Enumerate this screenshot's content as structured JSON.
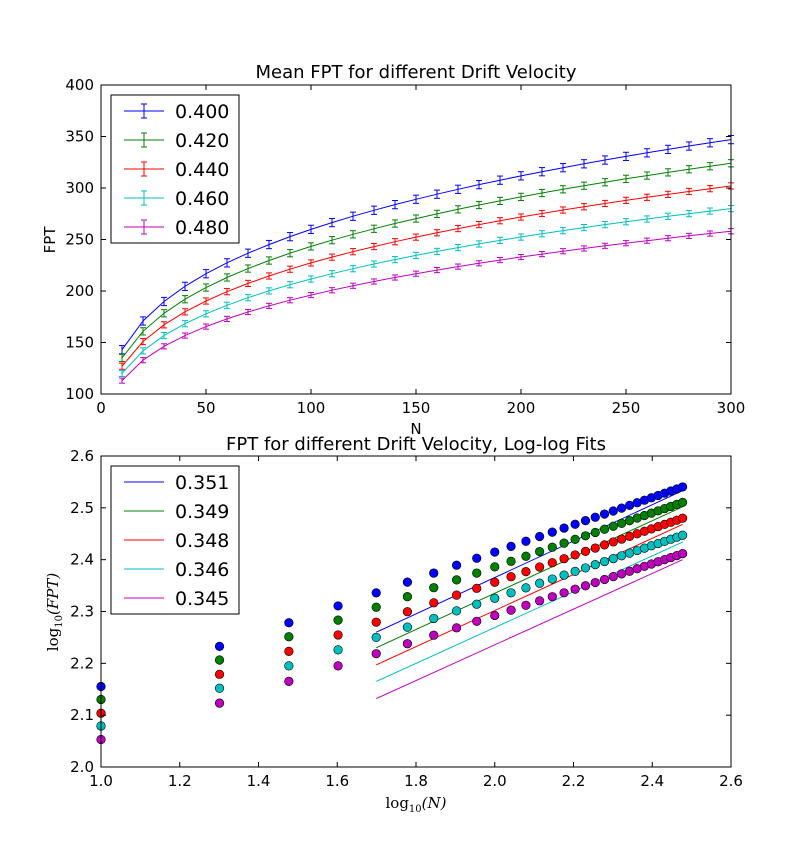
{
  "chart_data": [
    {
      "type": "line",
      "title": "Mean FPT for different Drift Velocity",
      "xlabel": "N",
      "ylabel": "FPT",
      "xlim": [
        0,
        300
      ],
      "ylim": [
        100,
        400
      ],
      "xticks": [
        "0",
        "50",
        "100",
        "150",
        "200",
        "250",
        "300"
      ],
      "yticks": [
        "100",
        "150",
        "200",
        "250",
        "300",
        "350",
        "400"
      ],
      "grid": false,
      "legend": "top-left",
      "error_bars": true,
      "x": [
        10,
        20,
        30,
        40,
        50,
        60,
        70,
        80,
        90,
        100,
        110,
        120,
        130,
        140,
        150,
        160,
        170,
        180,
        190,
        200,
        210,
        220,
        230,
        240,
        250,
        260,
        270,
        280,
        290,
        300
      ],
      "series": [
        {
          "name": "0.400",
          "color": "#0000ff",
          "y_at_10": 143,
          "y_at_300": 347,
          "exponent": 0.27,
          "error": 4
        },
        {
          "name": "0.420",
          "color": "#008000",
          "y_at_10": 135,
          "y_at_300": 324,
          "exponent": 0.27,
          "error": 3.5
        },
        {
          "name": "0.440",
          "color": "#ff0000",
          "y_at_10": 127,
          "y_at_300": 302,
          "exponent": 0.27,
          "error": 3
        },
        {
          "name": "0.460",
          "color": "#00bfbf",
          "y_at_10": 120,
          "y_at_300": 280,
          "exponent": 0.27,
          "error": 3
        },
        {
          "name": "0.480",
          "color": "#bf00bf",
          "y_at_10": 113,
          "y_at_300": 258,
          "exponent": 0.27,
          "error": 2.5
        }
      ]
    },
    {
      "type": "scatter",
      "title": "FPT for different Drift Velocity, Log-log Fits",
      "xlabel": "log10(N)",
      "ylabel": "log10(FPT)",
      "xlabel_base": "log",
      "xlabel_sub": "10",
      "xlabel_arg": "(N)",
      "ylabel_base": "log",
      "ylabel_sub": "10",
      "ylabel_arg": "(FPT)",
      "xlim": [
        1.0,
        2.6
      ],
      "ylim": [
        2.0,
        2.6
      ],
      "xticks": [
        "1.0",
        "1.2",
        "1.4",
        "1.6",
        "1.8",
        "2.0",
        "2.2",
        "2.4",
        "2.6"
      ],
      "yticks": [
        "2.0",
        "2.1",
        "2.2",
        "2.3",
        "2.4",
        "2.5",
        "2.6"
      ],
      "grid": false,
      "legend": "top-left",
      "fit_range": [
        1.699,
        2.477
      ],
      "series": [
        {
          "name": "0.351",
          "color": "#0000ff",
          "fit_y": [
            2.26,
            2.533
          ]
        },
        {
          "name": "0.349",
          "color": "#008000",
          "fit_y": [
            2.23,
            2.502
          ]
        },
        {
          "name": "0.348",
          "color": "#ff0000",
          "fit_y": [
            2.197,
            2.468
          ]
        },
        {
          "name": "0.346",
          "color": "#00bfbf",
          "fit_y": [
            2.165,
            2.434
          ]
        },
        {
          "name": "0.345",
          "color": "#bf00bf",
          "fit_y": [
            2.132,
            2.4
          ]
        }
      ]
    }
  ]
}
